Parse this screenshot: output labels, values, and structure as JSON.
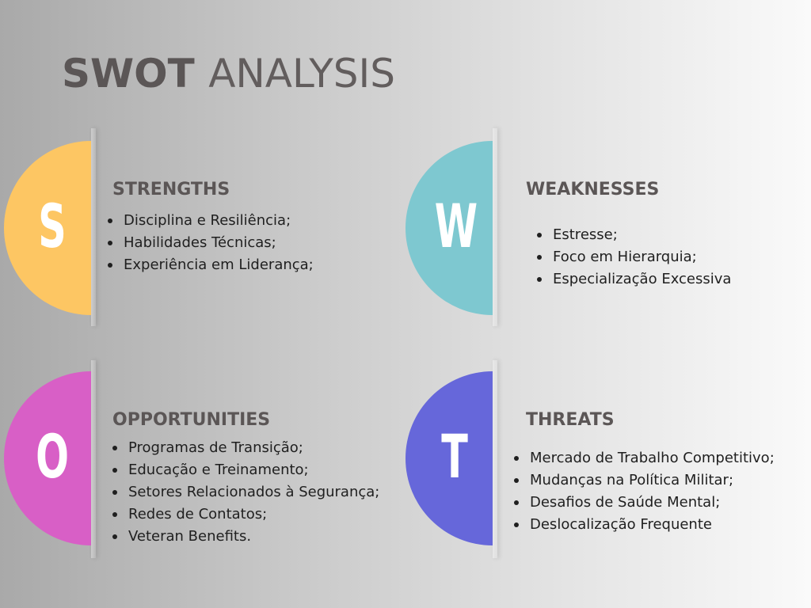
{
  "title": {
    "bold": "SWOT",
    "light": "ANALYSIS"
  },
  "colors": {
    "strengths": "#fdc663",
    "weaknesses": "#7ec8d0",
    "opportunities": "#d85fc6",
    "threats": "#6667da"
  },
  "quadrants": {
    "strengths": {
      "letter": "S",
      "heading": "STRENGTHS",
      "items": [
        "Disciplina e Resiliência;",
        "Habilidades Técnicas;",
        "Experiência em Liderança;"
      ]
    },
    "weaknesses": {
      "letter": "W",
      "heading": "WEAKNESSES",
      "items": [
        "Estresse;",
        "Foco em Hierarquia;",
        "Especialização Excessiva"
      ]
    },
    "opportunities": {
      "letter": "O",
      "heading": "OPPORTUNITIES",
      "items": [
        "Programas de Transição;",
        "Educação e Treinamento;",
        "Setores Relacionados à Segurança;",
        "Redes de Contatos;",
        "Veteran Benefits."
      ]
    },
    "threats": {
      "letter": "T",
      "heading": "THREATS",
      "items": [
        "Mercado de Trabalho Competitivo;",
        "Mudanças na Política Militar;",
        "Desafios de Saúde Mental;",
        "Deslocalização Frequente"
      ]
    }
  }
}
